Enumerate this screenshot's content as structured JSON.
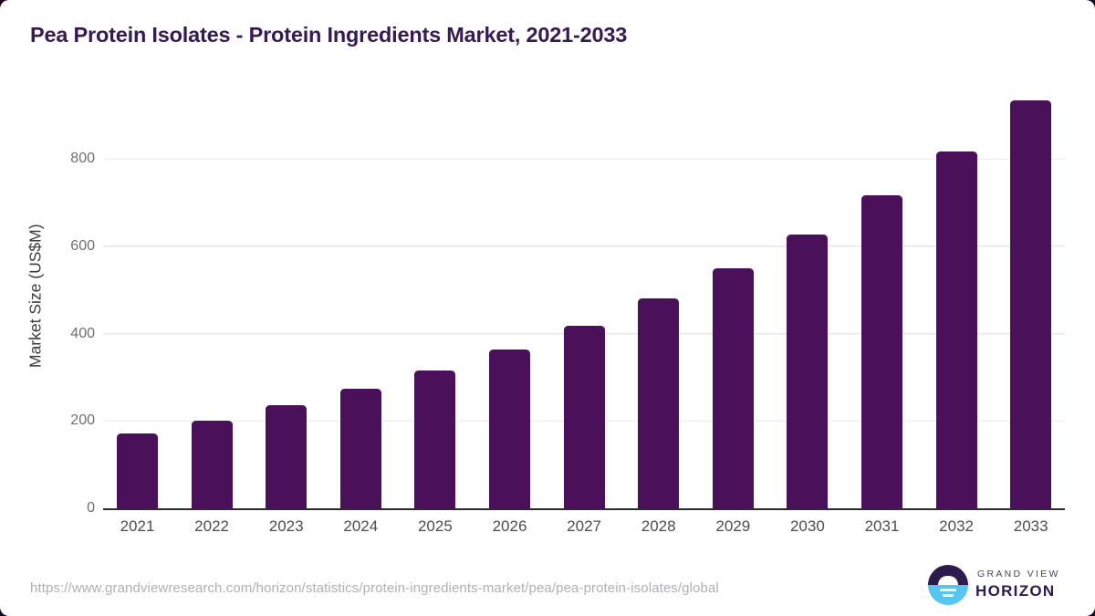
{
  "page": {
    "card_background": "#ffffff",
    "corner_background_color": "#190a24"
  },
  "chart_data": {
    "type": "bar",
    "title": "Pea Protein Isolates - Protein Ingredients Market, 2021-2033",
    "categories": [
      "2021",
      "2022",
      "2023",
      "2024",
      "2025",
      "2026",
      "2027",
      "2028",
      "2029",
      "2030",
      "2031",
      "2032",
      "2033"
    ],
    "values": [
      171,
      200,
      236,
      273,
      316,
      363,
      418,
      480,
      549,
      627,
      716,
      818,
      934
    ],
    "xlabel": "",
    "ylabel": "Market Size (US$M)",
    "ylim": [
      0,
      980
    ],
    "yticks": [
      0,
      200,
      400,
      600,
      800
    ],
    "grid": true,
    "legend": "none",
    "bar_color": "#4a1059",
    "title_color": "#371a50"
  },
  "footer": {
    "source_url": "https://www.grandviewresearch.com/horizon/statistics/protein-ingredients-market/pea/pea-protein-isolates/global",
    "logo": {
      "top_text": "GRAND VIEW",
      "bottom_text": "HORIZON",
      "mark_top_color": "#2d1b4e",
      "mark_bottom_color": "#56c6f0",
      "mark_detail_color": "#ffffff"
    }
  }
}
